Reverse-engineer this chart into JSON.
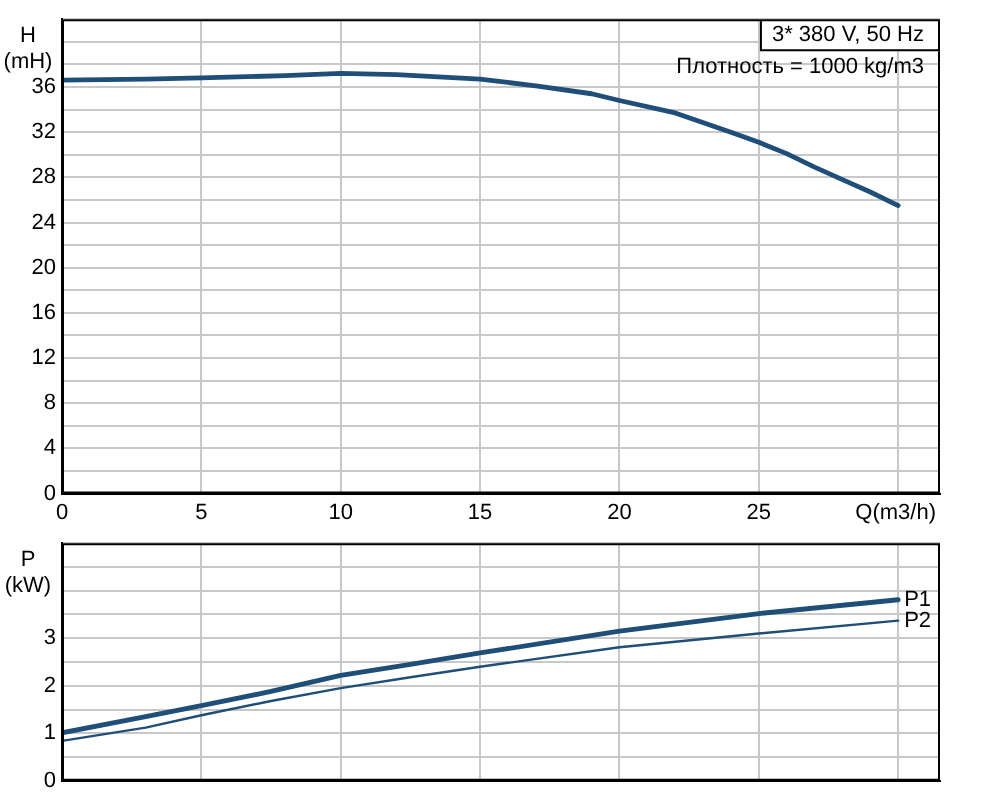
{
  "chart_data": [
    {
      "type": "line",
      "ylabel": "H (mH)",
      "xlabel": "Q(m3/h)",
      "annotations": [
        "3* 380 V, 50 Hz",
        "Плотность = 1000 kg/m3"
      ],
      "x": [
        0,
        3,
        5,
        8,
        10,
        12,
        15,
        17,
        19,
        20,
        22,
        24,
        25,
        26,
        27,
        28,
        29,
        30
      ],
      "series": [
        {
          "color": "#1f4e79",
          "values": [
            36.6,
            36.7,
            36.8,
            37.0,
            37.2,
            37.1,
            36.7,
            36.1,
            35.4,
            34.8,
            33.7,
            32.0,
            31.1,
            30.1,
            28.9,
            27.8,
            26.7,
            25.5
          ]
        }
      ],
      "xlim": [
        0,
        31.5
      ],
      "xticks": [
        0,
        5,
        10,
        15,
        20,
        25,
        {
          "value": 30,
          "label": null
        }
      ],
      "ylim": [
        0,
        42
      ],
      "yticks": [
        0,
        {
          "value": 2,
          "label": null
        },
        4,
        {
          "value": 6,
          "label": null
        },
        8,
        {
          "value": 10,
          "label": null
        },
        12,
        {
          "value": 14,
          "label": null
        },
        16,
        {
          "value": 18,
          "label": null
        },
        20,
        {
          "value": 22,
          "label": null
        },
        24,
        {
          "value": 26,
          "label": null
        },
        28,
        {
          "value": 30,
          "label": null
        },
        32,
        {
          "value": 34,
          "label": null
        },
        36,
        {
          "value": 38,
          "label": null
        },
        {
          "value": 40,
          "label": null
        },
        {
          "value": 42,
          "label": null
        }
      ],
      "grid": true,
      "legend": false,
      "marker": "none",
      "line_style": "solid"
    },
    {
      "type": "line",
      "ylabel": "P (kW)",
      "x": [
        0,
        3,
        5,
        7.5,
        10,
        12.5,
        15,
        20,
        25,
        30
      ],
      "series": [
        {
          "name": "P1",
          "color": "#1f4e79",
          "values": [
            1.01,
            1.35,
            1.58,
            1.88,
            2.22,
            2.45,
            2.69,
            3.15,
            3.52,
            3.81
          ]
        },
        {
          "name": "P2",
          "color": "#1f4e79",
          "values": [
            0.84,
            1.12,
            1.38,
            1.68,
            1.95,
            2.18,
            2.4,
            2.81,
            3.1,
            3.37
          ]
        }
      ],
      "xlim": [
        0,
        31.5
      ],
      "xticks": [
        0,
        5,
        10,
        15,
        20,
        25,
        30
      ],
      "ylim": [
        0,
        5
      ],
      "yticks": [
        0,
        {
          "value": 0.5,
          "label": null
        },
        1,
        {
          "value": 1.5,
          "label": null
        },
        2,
        {
          "value": 2.5,
          "label": null
        },
        3,
        {
          "value": 3.5,
          "label": null
        },
        {
          "value": 4,
          "label": null
        },
        {
          "value": 4.5,
          "label": null
        },
        {
          "value": 5,
          "label": null
        }
      ],
      "grid": true,
      "legend": false,
      "marker": "none",
      "line_style": "solid",
      "tick_labels": "y"
    }
  ]
}
